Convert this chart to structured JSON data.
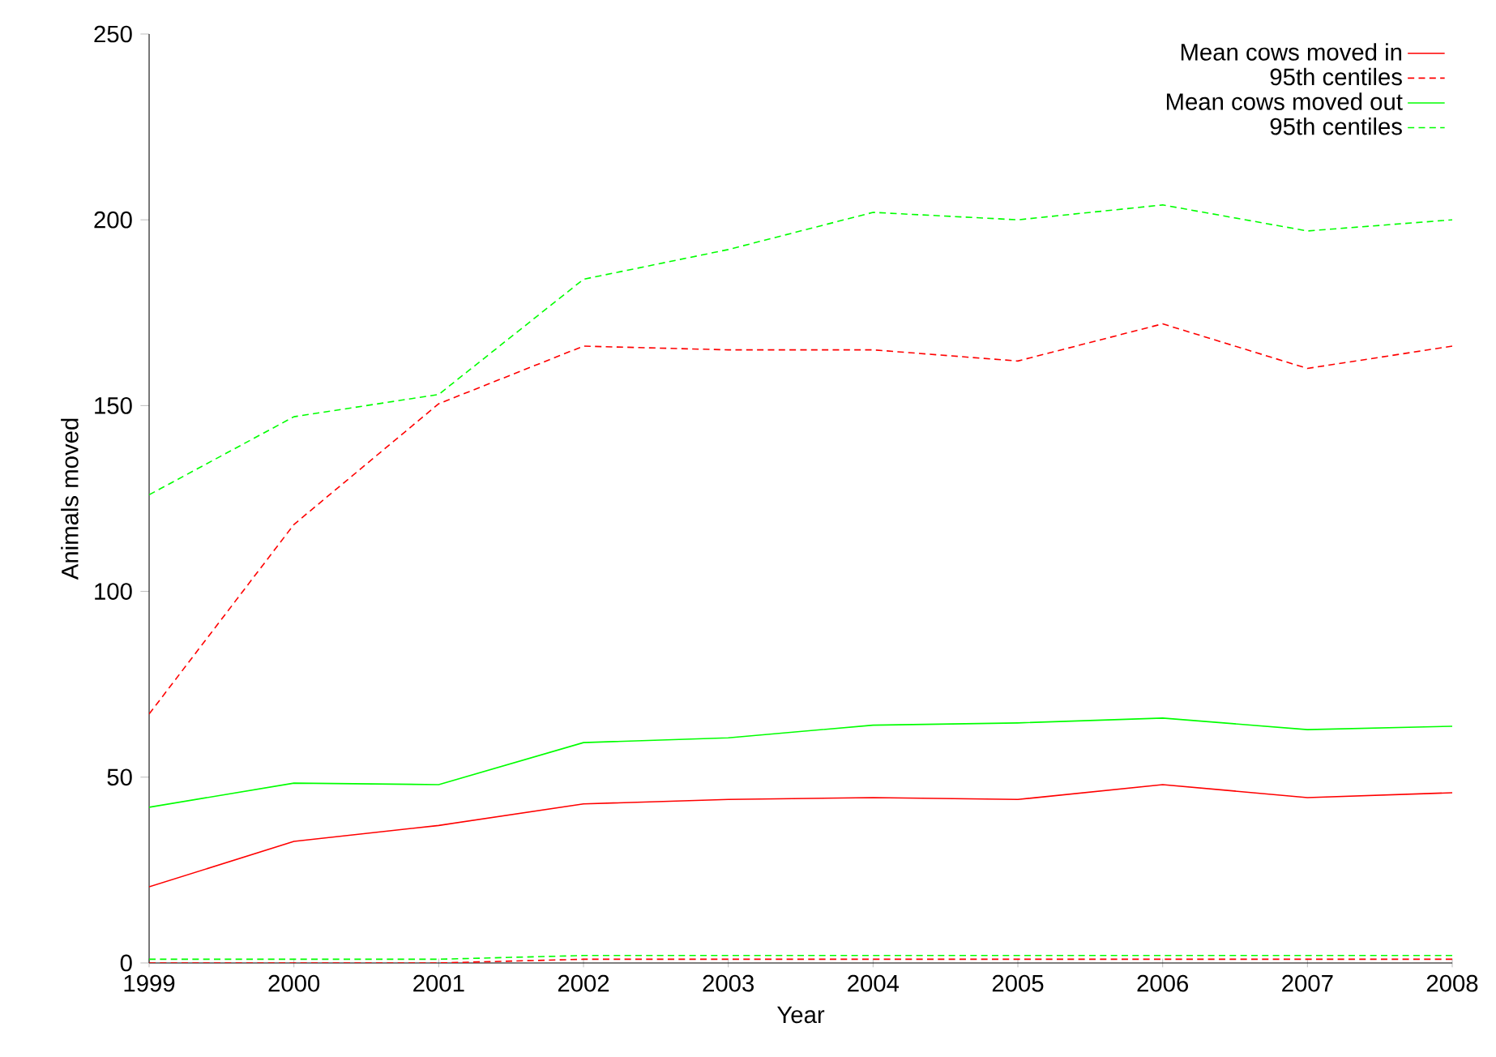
{
  "chart_data": {
    "type": "line",
    "xlabel": "Year",
    "ylabel": "Animals moved",
    "x": [
      1999,
      2000,
      2001,
      2002,
      2003,
      2004,
      2005,
      2006,
      2007,
      2008
    ],
    "series": [
      {
        "name": "Mean cows moved in",
        "color": "#ff0000",
        "line_style": "solid",
        "values": [
          20.5,
          32.7,
          37,
          42.8,
          44,
          44.5,
          44,
          48,
          44.5,
          45.8
        ]
      },
      {
        "name": "95th centiles",
        "color": "#ff0000",
        "line_style": "dashed",
        "values": [
          67,
          118,
          150.5,
          166,
          165,
          165,
          162,
          172,
          160,
          166
        ]
      },
      {
        "name": "Mean cows moved out",
        "color": "#00ff00",
        "line_style": "solid",
        "values": [
          41.9,
          48.4,
          48,
          59.3,
          60.6,
          64,
          64.6,
          65.9,
          62.8,
          63.7
        ]
      },
      {
        "name": "95th centiles",
        "color": "#00ff00",
        "line_style": "dashed",
        "values": [
          126,
          147,
          153,
          184,
          192,
          202,
          200,
          204,
          197,
          200
        ]
      },
      {
        "color": "#ff0000",
        "line_style": "dashed",
        "values": [
          0,
          0,
          0,
          1,
          1,
          1,
          1,
          1,
          1,
          1
        ]
      },
      {
        "color": "#00ff00",
        "line_style": "dashed",
        "values": [
          1,
          1,
          1,
          2,
          2,
          2,
          2,
          2,
          2,
          2
        ]
      }
    ],
    "xlim": [
      1999,
      2008
    ],
    "ylim": [
      0,
      250
    ],
    "xticks": [
      1999,
      2000,
      2001,
      2002,
      2003,
      2004,
      2005,
      2006,
      2007,
      2008
    ],
    "yticks": [
      0,
      50,
      100,
      150,
      200,
      250
    ],
    "grid": false,
    "legend": "top right",
    "marker": "none"
  }
}
